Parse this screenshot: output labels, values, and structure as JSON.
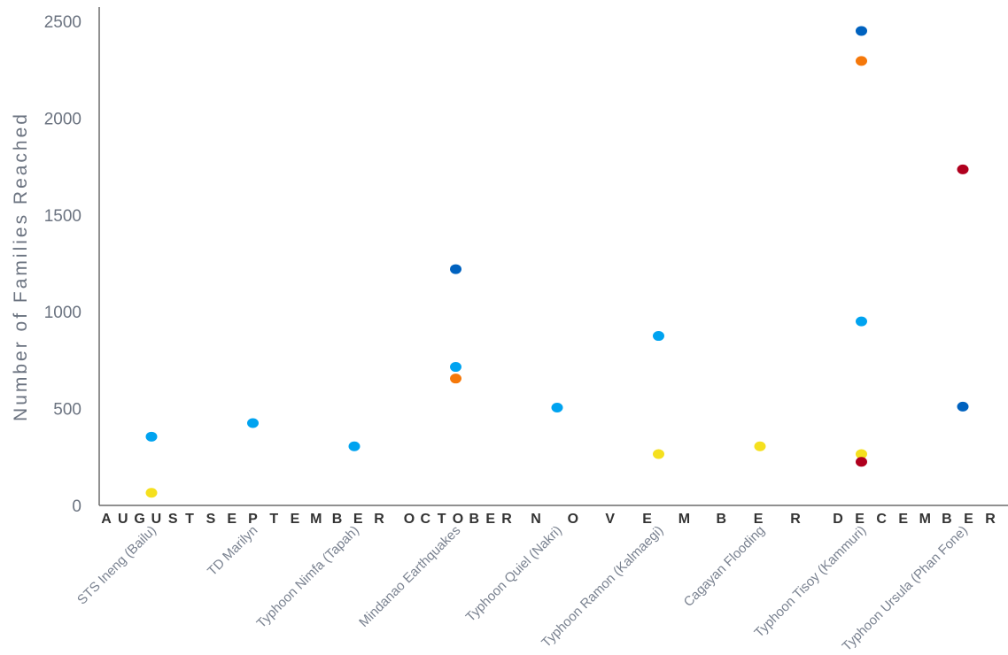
{
  "chart_data": {
    "type": "scatter",
    "title": "",
    "xlabel": "",
    "ylabel": "Number of Families Reached",
    "ylim": [
      0,
      2500
    ],
    "yticks": [
      0,
      500,
      1000,
      1500,
      2000,
      2500
    ],
    "grid": false,
    "categories": [
      "STS Ineng (Bailu)",
      "TD Marilyn",
      "Typhoon Nimfa (Tapah)",
      "Mindanao Earthquakes",
      "Typhoon Quiel (Nakri)",
      "Typhoon Ramon (Kalmaegi)",
      "Cagayan Flooding",
      "Typhoon Tisoy (Kammuri)",
      "Typhoon Ursula (Phan Fone)"
    ],
    "months": [
      "AUGUST",
      "SEPTEMBER",
      "OCTOBER",
      "NOVEMBER",
      "DECEMBER"
    ],
    "series": [
      {
        "color": "#00a3f0",
        "values": [
          355,
          425,
          305,
          715,
          505,
          875,
          null,
          950,
          null
        ]
      },
      {
        "color": "#f5e01e",
        "values": [
          65,
          null,
          null,
          null,
          null,
          265,
          305,
          265,
          null
        ]
      },
      {
        "color": "#0062bf",
        "values": [
          null,
          null,
          null,
          1220,
          null,
          null,
          null,
          2450,
          510
        ]
      },
      {
        "color": "#f5780a",
        "values": [
          null,
          null,
          null,
          655,
          null,
          null,
          null,
          2295,
          null
        ]
      },
      {
        "color": "#b0001e",
        "values": [
          null,
          null,
          null,
          null,
          null,
          null,
          null,
          225,
          1735
        ]
      }
    ]
  }
}
